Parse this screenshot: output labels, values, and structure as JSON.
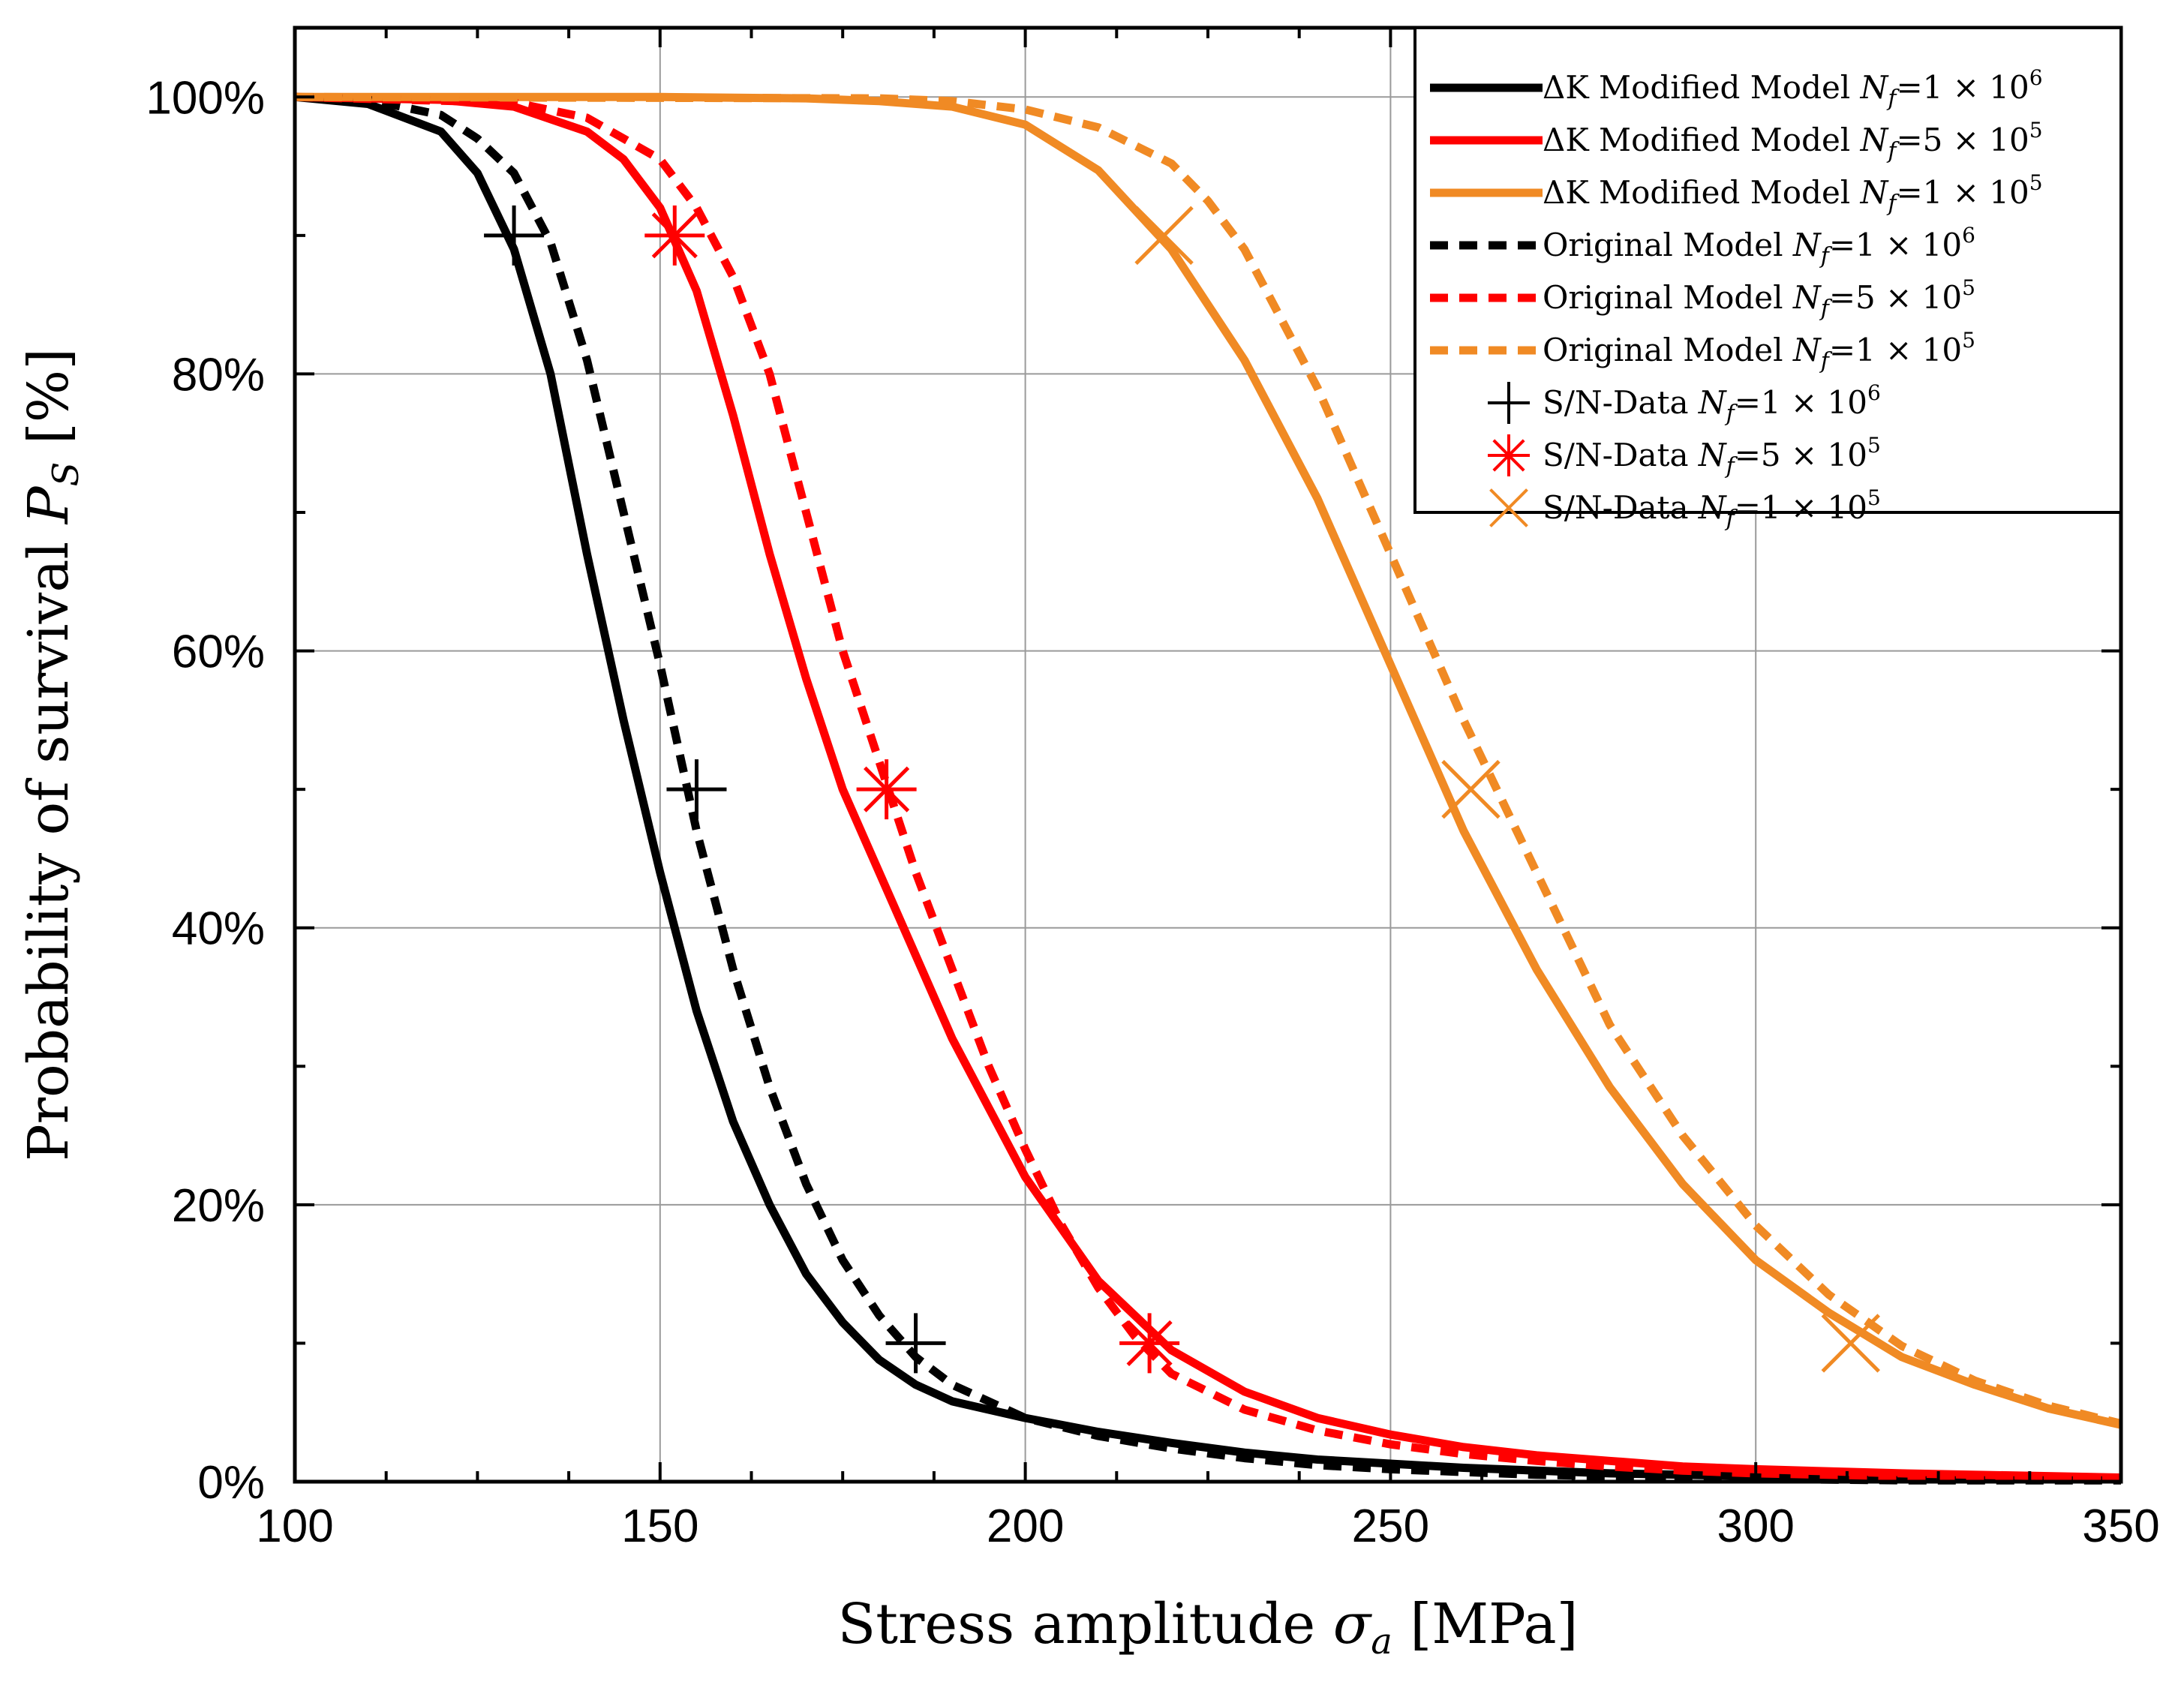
{
  "chart_data": {
    "type": "line",
    "xlabel_prefix": "Stress amplitude ",
    "xlabel_symbol": "σ",
    "xlabel_sub": "a",
    "xlabel_unit": " [MPa]",
    "ylabel_prefix": "Probability of survival ",
    "ylabel_symbol": "P",
    "ylabel_sub": "S",
    "ylabel_unit": " [%]",
    "xlim": [
      100,
      350
    ],
    "ylim": [
      0,
      105
    ],
    "xticks": [
      100,
      150,
      200,
      250,
      300,
      350
    ],
    "xtick_labels": [
      "100",
      "150",
      "200",
      "250",
      "300",
      "350"
    ],
    "yticks": [
      0,
      20,
      40,
      60,
      80,
      100
    ],
    "ytick_labels": [
      "0%",
      "20%",
      "40%",
      "60%",
      "80%",
      "100%"
    ],
    "grid": true,
    "legend_position": "top-right",
    "series": [
      {
        "name": "ΔK Modified Model N_f=1 × 10^6",
        "kind": "line",
        "style": "solid",
        "color": "#000000",
        "legend": {
          "prefix": "ΔK Modified Model ",
          "nf": "1",
          "exp": "6"
        },
        "x": [
          100,
          110,
          120,
          125,
          130,
          135,
          140,
          145,
          150,
          155,
          160,
          165,
          170,
          175,
          180,
          185,
          190,
          200,
          210,
          220,
          230,
          240,
          250,
          260,
          270,
          280,
          290,
          300,
          320,
          350
        ],
        "y": [
          100,
          99.5,
          97.5,
          94.5,
          89,
          80,
          67,
          55,
          44,
          34,
          26,
          20,
          15,
          11.5,
          8.8,
          7,
          5.8,
          4.6,
          3.6,
          2.8,
          2.1,
          1.6,
          1.3,
          1.0,
          0.8,
          0.6,
          0.5,
          0.4,
          0.3,
          0.2
        ]
      },
      {
        "name": "ΔK Modified Model N_f=5 × 10^5",
        "kind": "line",
        "style": "solid",
        "color": "#ff0000",
        "legend": {
          "prefix": "ΔK Modified Model ",
          "nf": "5",
          "exp": "5"
        },
        "x": [
          100,
          120,
          130,
          140,
          145,
          150,
          155,
          160,
          165,
          170,
          175,
          180,
          185,
          190,
          195,
          200,
          210,
          220,
          230,
          240,
          250,
          260,
          270,
          280,
          290,
          300,
          320,
          350
        ],
        "y": [
          100,
          99.8,
          99.3,
          97.5,
          95.5,
          92,
          86,
          77,
          67,
          58,
          50,
          44,
          38,
          32,
          27,
          22,
          14.5,
          9.5,
          6.5,
          4.6,
          3.4,
          2.5,
          1.9,
          1.5,
          1.1,
          0.9,
          0.6,
          0.3
        ]
      },
      {
        "name": "ΔK Modified Model N_f=1 × 10^5",
        "kind": "line",
        "style": "solid",
        "color": "#f08a24",
        "legend": {
          "prefix": "ΔK Modified Model ",
          "nf": "1",
          "exp": "5"
        },
        "x": [
          100,
          150,
          170,
          180,
          190,
          200,
          210,
          220,
          230,
          240,
          250,
          260,
          270,
          280,
          290,
          300,
          310,
          320,
          330,
          340,
          350
        ],
        "y": [
          100,
          100,
          99.9,
          99.7,
          99.3,
          98,
          94.7,
          89,
          81,
          71,
          59,
          47,
          37,
          28.5,
          21.5,
          16,
          12.2,
          9,
          7,
          5.3,
          4.1
        ]
      },
      {
        "name": "Original Model N_f=1 × 10^6",
        "kind": "line",
        "style": "dashed",
        "color": "#000000",
        "legend": {
          "prefix": "Original Model ",
          "nf": "1",
          "exp": "6"
        },
        "x": [
          100,
          110,
          120,
          125,
          130,
          135,
          140,
          145,
          150,
          155,
          160,
          165,
          170,
          175,
          180,
          185,
          190,
          200,
          210,
          220,
          230,
          240,
          250,
          260,
          270,
          280,
          290,
          300,
          320,
          350
        ],
        "y": [
          100,
          99.8,
          98.7,
          97,
          94.5,
          89.5,
          81,
          70,
          59,
          47,
          37,
          28.5,
          21.5,
          16,
          12,
          9,
          7,
          4.6,
          3.3,
          2.4,
          1.7,
          1.2,
          0.9,
          0.7,
          0.5,
          0.4,
          0.3,
          0.2,
          0.1,
          0.1
        ]
      },
      {
        "name": "Original Model N_f=5 × 10^5",
        "kind": "line",
        "style": "dashed",
        "color": "#ff0000",
        "legend": {
          "prefix": "Original Model ",
          "nf": "5",
          "exp": "5"
        },
        "x": [
          100,
          130,
          140,
          150,
          155,
          160,
          165,
          170,
          175,
          180,
          185,
          190,
          195,
          200,
          205,
          210,
          215,
          220,
          230,
          240,
          250,
          260,
          270,
          280,
          290,
          300,
          320,
          350
        ],
        "y": [
          100,
          99.6,
          98.5,
          95.5,
          92,
          87,
          80,
          70,
          60,
          52,
          44,
          37,
          30,
          24,
          18.5,
          14,
          10.5,
          7.8,
          5.2,
          3.7,
          2.7,
          2,
          1.5,
          1.1,
          0.8,
          0.6,
          0.4,
          0.2
        ]
      },
      {
        "name": "Original Model N_f=1 × 10^5",
        "kind": "line",
        "style": "dashed",
        "color": "#f08a24",
        "legend": {
          "prefix": "Original Model ",
          "nf": "1",
          "exp": "5"
        },
        "x": [
          100,
          180,
          190,
          200,
          210,
          220,
          225,
          230,
          240,
          250,
          260,
          270,
          280,
          290,
          300,
          310,
          320,
          330,
          340,
          350
        ],
        "y": [
          100,
          99.9,
          99.7,
          99.1,
          97.8,
          95.2,
          92.5,
          89,
          79,
          67,
          55,
          44,
          33,
          25,
          18.5,
          13.5,
          9.8,
          7.3,
          5.5,
          4.2
        ]
      },
      {
        "name": "S/N-Data N_f=1 × 10^6",
        "kind": "marker",
        "marker": "plus",
        "color": "#000000",
        "legend": {
          "prefix": "S/N-Data ",
          "nf": "1",
          "exp": "6"
        },
        "x": [
          130,
          155,
          185
        ],
        "y": [
          90,
          50,
          10
        ]
      },
      {
        "name": "S/N-Data N_f=5 × 10^5",
        "kind": "marker",
        "marker": "asterisk",
        "color": "#ff0000",
        "legend": {
          "prefix": "S/N-Data ",
          "nf": "5",
          "exp": "5"
        },
        "x": [
          152,
          181,
          217
        ],
        "y": [
          90,
          50,
          10
        ]
      },
      {
        "name": "S/N-Data N_f=1 × 10^5",
        "kind": "marker",
        "marker": "x",
        "color": "#f08a24",
        "legend": {
          "prefix": "S/N-Data ",
          "nf": "1",
          "exp": "5"
        },
        "x": [
          219,
          261,
          313
        ],
        "y": [
          90,
          50,
          10
        ]
      }
    ]
  }
}
